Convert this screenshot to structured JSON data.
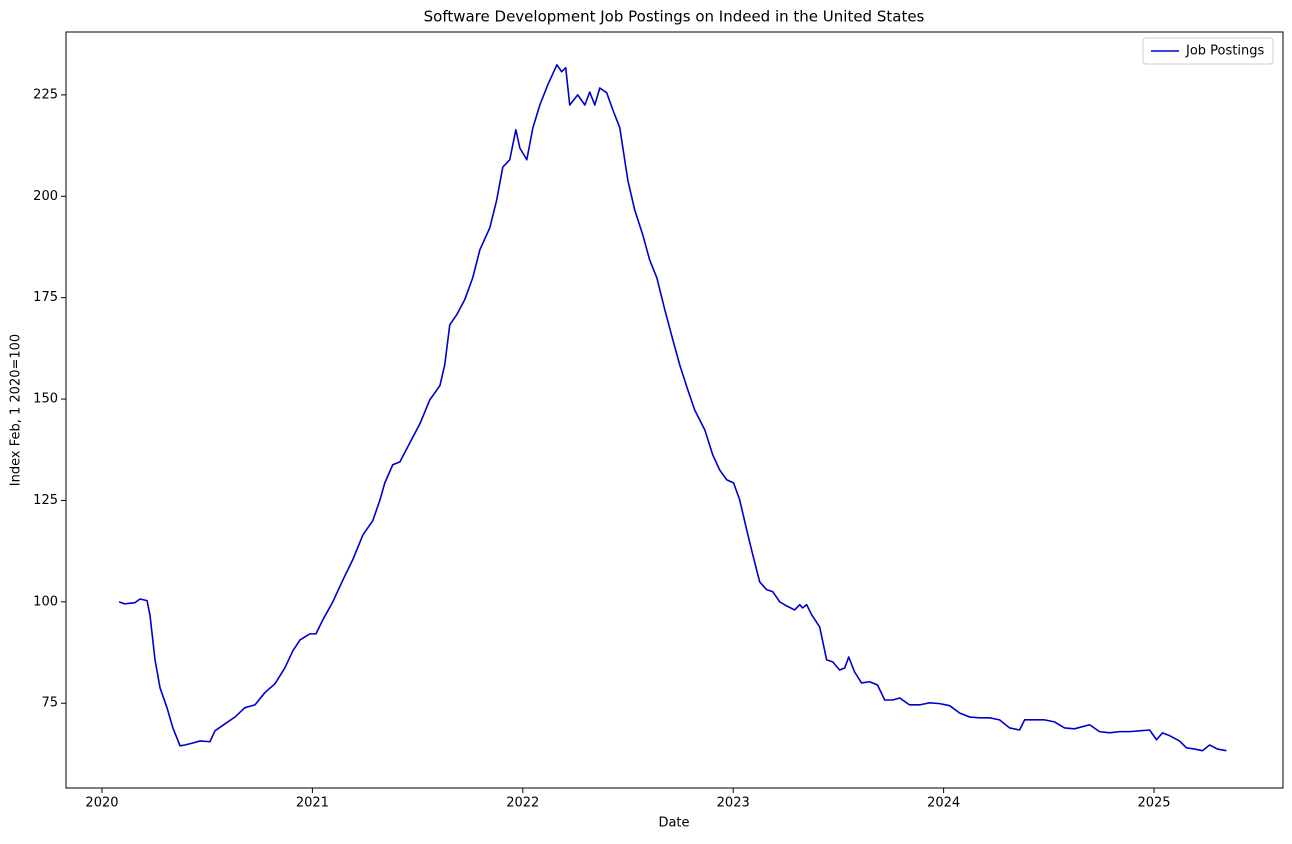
{
  "chart_data": {
    "type": "line",
    "title": "Software Development Job Postings on Indeed in the United States",
    "x_label": "Date",
    "y_label": "Index Feb, 1 2020=100",
    "x": [
      2020.081,
      2020.109,
      2020.157,
      2020.181,
      2020.214,
      2020.228,
      2020.252,
      2020.276,
      2020.309,
      2020.337,
      2020.371,
      2020.394,
      2020.432,
      2020.466,
      2020.513,
      2020.537,
      2020.584,
      2020.632,
      2020.679,
      2020.727,
      2020.774,
      2020.822,
      2020.869,
      2020.907,
      2020.941,
      2020.988,
      2021.017,
      2021.05,
      2021.097,
      2021.145,
      2021.192,
      2021.24,
      2021.287,
      2021.321,
      2021.344,
      2021.382,
      2021.416,
      2021.463,
      2021.511,
      2021.558,
      2021.606,
      2021.629,
      2021.653,
      2021.686,
      2021.724,
      2021.762,
      2021.796,
      2021.843,
      2021.876,
      2021.905,
      2021.938,
      2021.967,
      2021.986,
      2022.019,
      2022.048,
      2022.081,
      2022.119,
      2022.162,
      2022.185,
      2022.204,
      2022.223,
      2022.261,
      2022.295,
      2022.318,
      2022.342,
      2022.366,
      2022.399,
      2022.428,
      2022.461,
      2022.499,
      2022.532,
      2022.57,
      2022.603,
      2022.637,
      2022.675,
      2022.713,
      2022.746,
      2022.784,
      2022.817,
      2022.865,
      2022.903,
      2022.936,
      2022.969,
      2023.002,
      2023.031,
      2023.064,
      2023.093,
      2023.126,
      2023.159,
      2023.188,
      2023.221,
      2023.254,
      2023.292,
      2023.316,
      2023.33,
      2023.349,
      2023.373,
      2023.411,
      2023.444,
      2023.473,
      2023.506,
      2023.53,
      2023.549,
      2023.577,
      2023.61,
      2023.648,
      2023.686,
      2023.72,
      2023.758,
      2023.791,
      2023.838,
      2023.886,
      2023.933,
      2023.981,
      2024.029,
      2024.076,
      2024.124,
      2024.171,
      2024.219,
      2024.266,
      2024.314,
      2024.361,
      2024.385,
      2024.432,
      2024.48,
      2024.527,
      2024.575,
      2024.622,
      2024.694,
      2024.741,
      2024.789,
      2024.836,
      2024.884,
      2024.979,
      2025.012,
      2025.04,
      2025.074,
      2025.121,
      2025.154,
      2025.192,
      2025.23,
      2025.264,
      2025.302,
      2025.344
    ],
    "series": [
      {
        "name": "Job Postings",
        "color": "#0000cd",
        "values": [
          100,
          99.5,
          99.8,
          100.7,
          100.3,
          96.8,
          85.7,
          78.8,
          73.9,
          68.9,
          64.5,
          64.7,
          65.2,
          65.7,
          65.5,
          68.2,
          69.9,
          71.6,
          73.9,
          74.6,
          77.6,
          79.8,
          83.7,
          87.9,
          90.6,
          92.1,
          92.1,
          95.6,
          100,
          105.4,
          110.4,
          116.5,
          120,
          125.1,
          129.3,
          133.8,
          134.5,
          139.2,
          143.9,
          149.8,
          153.3,
          158.4,
          168.3,
          170.8,
          174.5,
          179.9,
          186.8,
          192.2,
          199.1,
          207.2,
          209,
          216.4,
          211.9,
          209,
          216.9,
          222.5,
          227.5,
          232.4,
          230.7,
          231.7,
          222.5,
          225,
          222.5,
          225.7,
          222.5,
          226.7,
          225.5,
          221.3,
          216.9,
          204,
          196.6,
          190.5,
          184.3,
          179.9,
          172,
          164.6,
          158.4,
          152.3,
          147.3,
          142.4,
          136.2,
          132.5,
          130.1,
          129.3,
          125.1,
          117.8,
          111.6,
          104.9,
          103,
          102.5,
          100,
          99,
          98,
          99.3,
          98.5,
          99.3,
          96.8,
          93.8,
          85.7,
          85.2,
          83.2,
          83.7,
          86.4,
          82.7,
          80,
          80.3,
          79.5,
          75.8,
          75.8,
          76.3,
          74.6,
          74.6,
          75.1,
          74.9,
          74.4,
          72.6,
          71.6,
          71.4,
          71.4,
          70.9,
          68.9,
          68.4,
          70.9,
          70.9,
          70.9,
          70.4,
          68.9,
          68.7,
          69.7,
          68,
          67.7,
          68,
          68,
          68.4,
          66,
          67.7,
          67,
          65.7,
          64,
          63.7,
          63.3,
          64.7,
          63.7,
          63.3
        ]
      }
    ],
    "xlim": [
      2019.829,
      2025.613
    ],
    "xticks": [
      2020,
      2021,
      2022,
      2023,
      2024,
      2025
    ],
    "ylim": [
      54.1,
      240.5
    ],
    "yticks": [
      75,
      100,
      125,
      150,
      175,
      200,
      225
    ],
    "grid": false,
    "legend": "upper right"
  }
}
